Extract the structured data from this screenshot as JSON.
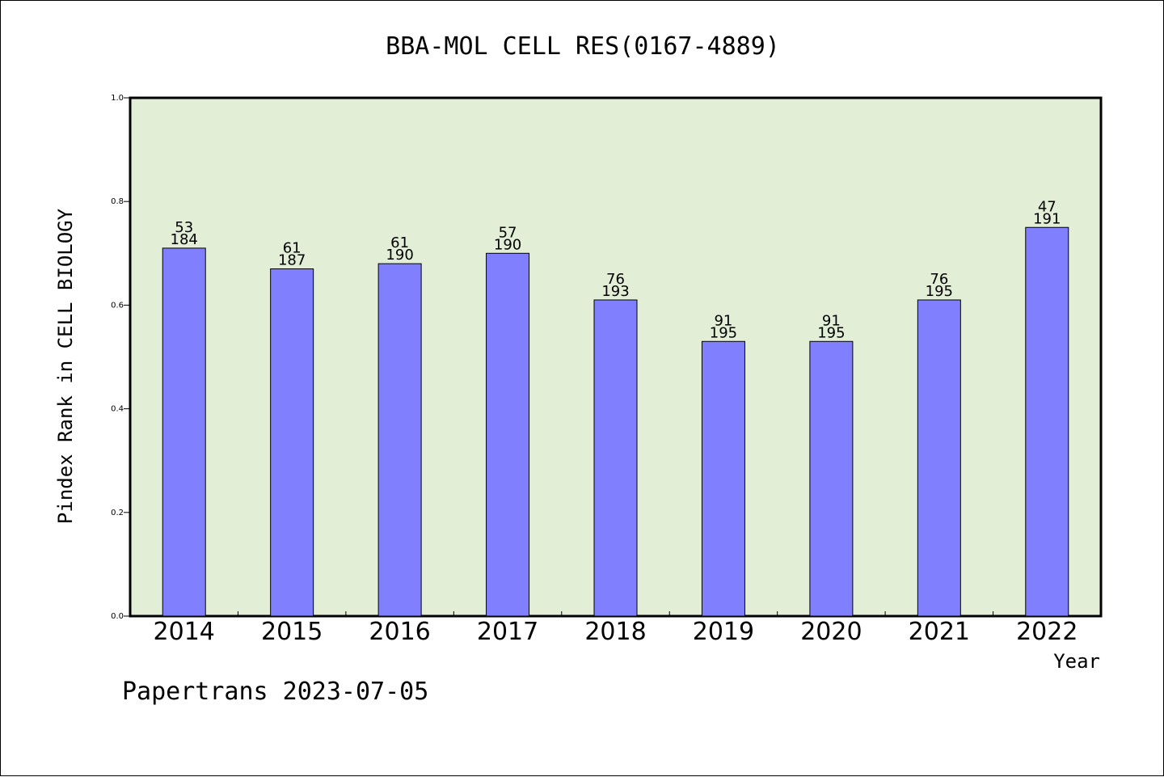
{
  "colors": {
    "plot_background": "#e2efd6",
    "bar_fill": "#8080ff",
    "bar_stroke": "#000000",
    "axis": "#000000"
  },
  "footer": {
    "text": "Papertrans 2023-07-05"
  },
  "chart_data": {
    "type": "bar",
    "title": "BBA-MOL CELL RES(0167-4889)",
    "xlabel": "Year",
    "ylabel": "Pindex Rank in CELL BIOLOGY",
    "ylim": [
      0,
      1.0
    ],
    "yticks": [
      "0.0",
      "0.2",
      "0.4",
      "0.6",
      "0.8",
      "1.0"
    ],
    "grid": false,
    "categories": [
      "2014",
      "2015",
      "2016",
      "2017",
      "2018",
      "2019",
      "2020",
      "2021",
      "2022"
    ],
    "values": [
      0.71,
      0.67,
      0.68,
      0.7,
      0.61,
      0.53,
      0.53,
      0.61,
      0.75
    ],
    "rank_labels": [
      "53",
      "61",
      "61",
      "57",
      "76",
      "91",
      "91",
      "76",
      "47"
    ],
    "total_labels": [
      "184",
      "187",
      "190",
      "190",
      "193",
      "195",
      "195",
      "195",
      "191"
    ]
  }
}
